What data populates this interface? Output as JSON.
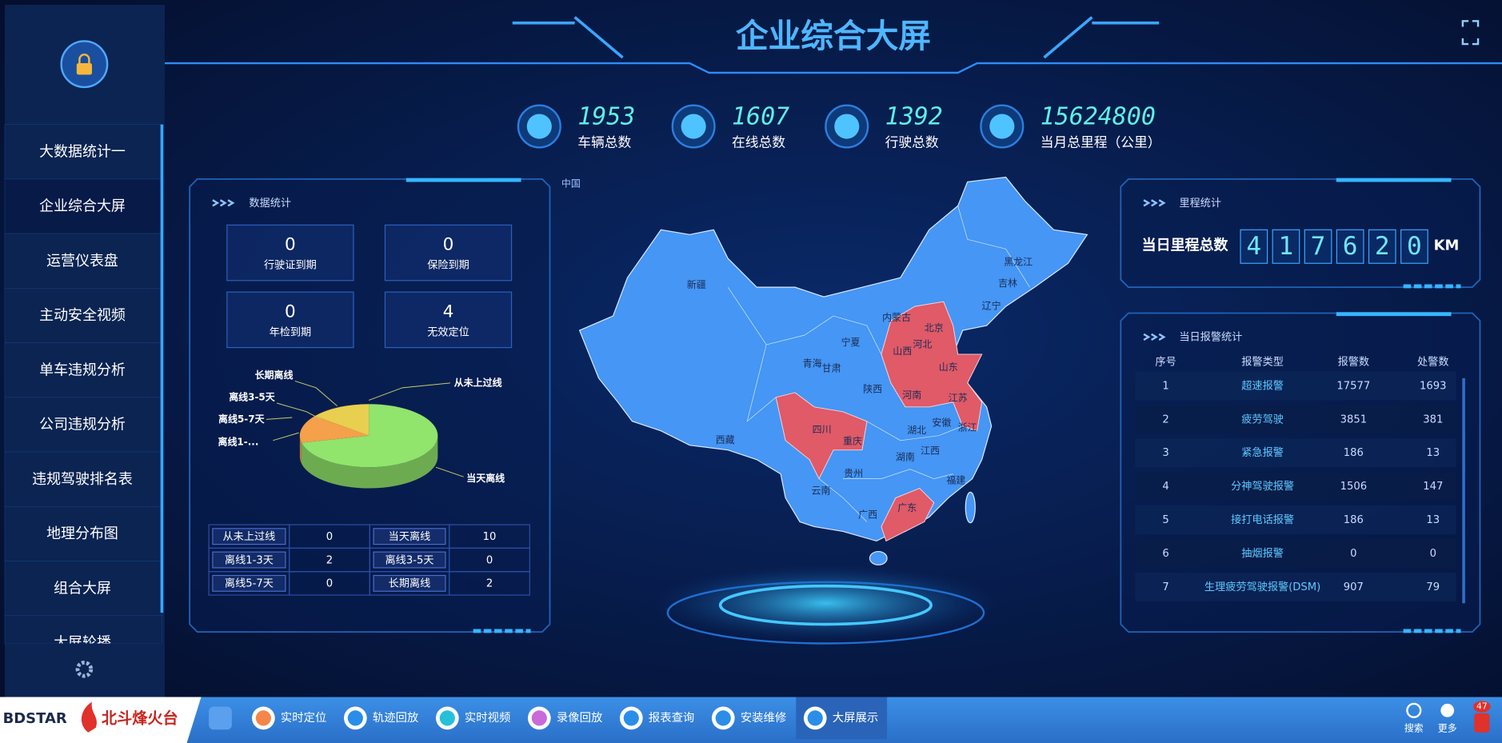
{
  "sidebar": {
    "items": [
      "大数据统计一",
      "企业综合大屏",
      "运营仪表盘",
      "主动安全视频",
      "单车违规分析",
      "公司违规分析",
      "违规驾驶排名表",
      "地理分布图",
      "组合大屏",
      "大屏轮播"
    ]
  },
  "header": {
    "title": "企业综合大屏"
  },
  "summary": [
    {
      "value": 1953,
      "label": "车辆总数"
    },
    {
      "value": 1607,
      "label": "在线总数"
    },
    {
      "value": 1392,
      "label": "行驶总数"
    },
    {
      "value": 15624800,
      "label": "当月总里程（公里）"
    }
  ],
  "data_stats": {
    "title": "数据统计",
    "cards": [
      {
        "value": 0,
        "label": "行驶证到期"
      },
      {
        "value": 0,
        "label": "保险到期"
      },
      {
        "value": 0,
        "label": "年检到期"
      },
      {
        "value": 4,
        "label": "无效定位"
      }
    ],
    "pie": {
      "labels": [
        "长期离线",
        "离线3-5天",
        "离线5-7天",
        "离线1-...",
        "从未上过线",
        "当天离线"
      ],
      "colors": [
        "#5b8ff9",
        "#91e46c",
        "#f5a04a",
        "#e86452",
        "#6dc8ec",
        "#e8cf4f"
      ]
    },
    "table": {
      "rows": [
        [
          "从未上过线",
          0,
          "当天离线",
          10
        ],
        [
          "离线1-3天",
          2,
          "离线3-5天",
          0
        ],
        [
          "离线5-7天",
          0,
          "长期离线",
          2
        ]
      ]
    }
  },
  "map": {
    "labels": [
      "中国",
      "新疆",
      "西藏",
      "青海",
      "甘肃",
      "宁夏",
      "内蒙古",
      "黑龙江",
      "吉林",
      "辽宁",
      "北京",
      "河北",
      "山西",
      "陕西",
      "山东",
      "河南",
      "江苏",
      "四川",
      "重庆",
      "湖北",
      "安徽",
      "湖南",
      "江西",
      "浙江",
      "云南",
      "贵州",
      "广西",
      "广东",
      "福建"
    ]
  },
  "mileage": {
    "title": "里程统计",
    "label": "当日里程总数",
    "digits": [
      4,
      1,
      7,
      6,
      2,
      0
    ],
    "unit": "KM"
  },
  "alarms": {
    "title": "当日报警统计",
    "columns": [
      "序号",
      "报警类型",
      "报警数",
      "处警数"
    ],
    "rows": [
      [
        1,
        "超速报警",
        17577,
        1693
      ],
      [
        2,
        "疲劳驾驶",
        3851,
        381
      ],
      [
        3,
        "紧急报警",
        186,
        13
      ],
      [
        4,
        "分神驾驶报警",
        1506,
        147
      ],
      [
        5,
        "接打电话报警",
        186,
        13
      ],
      [
        6,
        "抽烟报警",
        0,
        0
      ],
      [
        7,
        "生理疲劳驾驶报警(DSM)",
        907,
        79
      ]
    ]
  },
  "taskbar": {
    "brand": "BDSTAR",
    "brand_cn": "北斗烽火台",
    "items": [
      "实时定位",
      "轨迹回放",
      "实时视频",
      "录像回放",
      "报表查询",
      "安装维修",
      "大屏展示"
    ],
    "search": "搜索",
    "more": "更多",
    "badge": 47
  }
}
